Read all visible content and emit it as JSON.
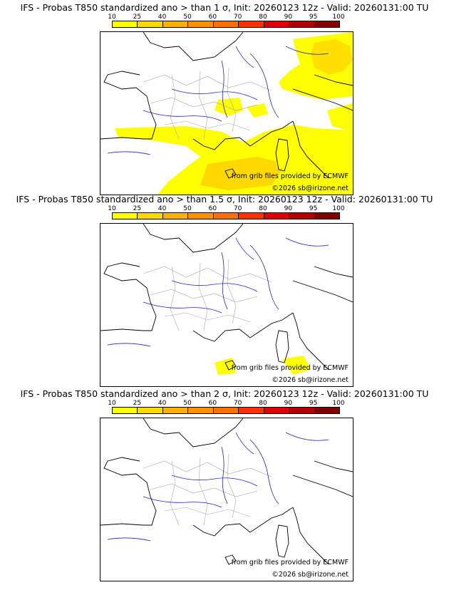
{
  "panels": [
    {
      "title": "IFS - Probas T850  standardized ano > than 1 σ, Init: 20260123 12z - Valid: 20260131:00 TU",
      "credit_grib": "from grib files provided by ECMWF",
      "credit_site": "©2026 sb@irizone.net"
    },
    {
      "title": "IFS - Probas T850  standardized ano > than 1.5 σ, Init: 20260123 12z - Valid: 20260131:00 TU",
      "credit_grib": "from grib files provided by ECMWF",
      "credit_site": "©2026 sb@irizone.net"
    },
    {
      "title": "IFS - Probas T850  standardized ano > than 2 σ, Init: 20260123 12z - Valid: 20260131:00 TU",
      "credit_grib": "from grib files provided by ECMWF",
      "credit_site": "©2026 sb@irizone.net"
    }
  ],
  "legend": {
    "labels": [
      "10",
      "25",
      "40",
      "50",
      "60",
      "70",
      "80",
      "90",
      "95",
      "100"
    ],
    "colors": [
      "#ffff00",
      "#ffd800",
      "#ffb000",
      "#ff9000",
      "#ff7000",
      "#ff3000",
      "#e00000",
      "#b00000",
      "#800000"
    ]
  },
  "colors": {
    "coast": "#000000",
    "rivers": "#2222cc",
    "borders": "#aaaaaa",
    "prob_10": "#ffff00",
    "prob_25": "#ffd800",
    "prob_40": "#ffb000"
  }
}
